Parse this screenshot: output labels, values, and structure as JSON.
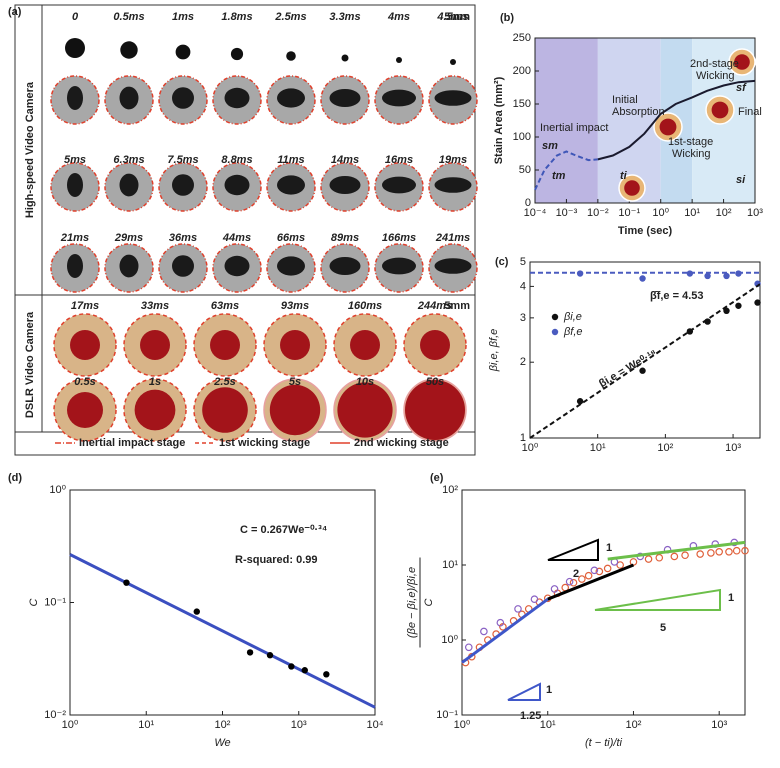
{
  "panel_a": {
    "label": "(a)",
    "scale": "5mm",
    "high_speed": {
      "title": "High-speed Video Camera",
      "times": [
        [
          "0",
          "0.5ms",
          "1ms",
          "1.8ms",
          "2.5ms",
          "3.3ms",
          "4ms",
          "4.5ms"
        ],
        [
          "5ms",
          "6.3ms",
          "7.5ms",
          "8.8ms",
          "11ms",
          "14ms",
          "16ms",
          "19ms"
        ],
        [
          "21ms",
          "29ms",
          "36ms",
          "44ms",
          "66ms",
          "89ms",
          "166ms",
          "241ms"
        ]
      ]
    },
    "dslr": {
      "title": "DSLR Video Camera",
      "times": [
        [
          "17ms",
          "33ms",
          "63ms",
          "93ms",
          "160ms",
          "244ms"
        ],
        [
          "0.5s",
          "1s",
          "2.5s",
          "5s",
          "10s",
          "50s"
        ]
      ]
    },
    "legend": [
      "Inertial impact stage",
      "1st wicking stage",
      "2nd wicking stage"
    ]
  },
  "chart_data": [
    {
      "type": "line",
      "panel_label": "(b)",
      "xlabel": "Time (sec)",
      "ylabel": "Stain Area (mm²)",
      "xlog": true,
      "xlim": [
        0.0001,
        1000
      ],
      "ylim": [
        0,
        250
      ],
      "xticks": [
        {
          "value": 0.0001,
          "label": "10⁻⁴"
        },
        {
          "value": 0.001,
          "label": "10⁻³"
        },
        {
          "value": 0.01,
          "label": "10⁻²"
        },
        {
          "value": 0.1,
          "label": "10⁻¹"
        },
        {
          "value": 1,
          "label": "10⁰"
        },
        {
          "value": 10,
          "label": "10¹"
        },
        {
          "value": 100,
          "label": "10²"
        },
        {
          "value": 1000,
          "label": "10³"
        }
      ],
      "yticks": [
        0,
        50,
        100,
        150,
        200,
        250
      ],
      "bands": [
        {
          "from": 0.0001,
          "to": 0.01,
          "color": "#bcb5e2"
        },
        {
          "from": 0.01,
          "to": 1,
          "color": "#cfd5f0"
        },
        {
          "from": 1,
          "to": 10,
          "color": "#c3dbf0"
        },
        {
          "from": 10,
          "to": 1000,
          "color": "#d8eaf6"
        }
      ],
      "series": [
        {
          "mode": "dashed",
          "color": "#3f57b8",
          "x": [
            0.0001,
            0.0002,
            0.0005,
            0.001,
            0.002,
            0.005,
            0.01
          ],
          "values": [
            20,
            50,
            72,
            78,
            72,
            65,
            66
          ]
        },
        {
          "mode": "line",
          "color": "#1a1a2e",
          "x": [
            0.01,
            0.03,
            0.1,
            0.3,
            1,
            3,
            10,
            30,
            100,
            300,
            1000
          ],
          "values": [
            66,
            72,
            85,
            105,
            135,
            150,
            160,
            170,
            178,
            183,
            185
          ]
        }
      ],
      "annotations": [
        "Inertial impact",
        "Initial",
        "Absorption",
        "1st-stage",
        "Wicking",
        "2nd-stage",
        "Wicking",
        "Final",
        "sm",
        "tm",
        "ti",
        "sf",
        "si"
      ]
    },
    {
      "type": "scatter",
      "panel_label": "(c)",
      "ylabel": "βi,e, βf,e",
      "xlog": true,
      "ylog": true,
      "xlim": [
        1,
        2500
      ],
      "ylim": [
        1,
        5
      ],
      "xticks": [
        {
          "value": 1,
          "label": "10⁰"
        },
        {
          "value": 10,
          "label": "10¹"
        },
        {
          "value": 100,
          "label": "10²"
        },
        {
          "value": 1000,
          "label": "10³"
        }
      ],
      "yticks": [
        1,
        2,
        3,
        4,
        5
      ],
      "legend": "upper left",
      "series": [
        {
          "name": "βi,e",
          "mode": "markers",
          "color": "#111111",
          "x": [
            5.5,
            46,
            230,
            420,
            800,
            1200,
            2300
          ],
          "values": [
            1.4,
            1.85,
            2.65,
            2.9,
            3.2,
            3.35,
            3.45
          ]
        },
        {
          "name": "βf,e",
          "mode": "markers",
          "color": "#4a5bbf",
          "x": [
            5.5,
            46,
            230,
            420,
            800,
            1200,
            2300
          ],
          "values": [
            4.5,
            4.3,
            4.5,
            4.4,
            4.4,
            4.5,
            4.1
          ]
        },
        {
          "mode": "dashed",
          "color": "#111111",
          "x": [
            1,
            2500
          ],
          "values": [
            1,
            4.08
          ]
        },
        {
          "mode": "dashed",
          "color": "#4a5bbf",
          "x": [
            1,
            2500
          ],
          "values": [
            4.53,
            4.53
          ]
        }
      ],
      "annotations": [
        "β̄f,e = 4.53",
        "βi,e = We⁰·¹⁸"
      ]
    },
    {
      "type": "scatter",
      "panel_label": "(d)",
      "xlabel": "We",
      "ylabel": "C",
      "xlog": true,
      "ylog": true,
      "xlim": [
        1,
        10000
      ],
      "ylim": [
        0.01,
        1
      ],
      "xticks": [
        {
          "value": 1,
          "label": "10⁰"
        },
        {
          "value": 10,
          "label": "10¹"
        },
        {
          "value": 100,
          "label": "10²"
        },
        {
          "value": 1000,
          "label": "10³"
        },
        {
          "value": 10000,
          "label": "10⁴"
        }
      ],
      "yticks": [
        {
          "value": 0.01,
          "label": "10⁻²"
        },
        {
          "value": 0.1,
          "label": "10⁻¹"
        },
        {
          "value": 1,
          "label": "10⁰"
        }
      ],
      "series": [
        {
          "mode": "line",
          "color": "#3b4fc0",
          "x": [
            1,
            10000
          ],
          "values": [
            0.267,
            0.0117
          ]
        },
        {
          "mode": "markers",
          "color": "#000000",
          "x": [
            5.5,
            46,
            230,
            420,
            800,
            1200,
            2300
          ],
          "values": [
            0.15,
            0.083,
            0.036,
            0.034,
            0.027,
            0.025,
            0.023
          ]
        }
      ],
      "annotations": [
        "C = 0.267We⁻⁰·³⁴",
        "R-squared: 0.99"
      ]
    },
    {
      "type": "scatter",
      "panel_label": "(e)",
      "xlabel": "(t − ti)/ti",
      "ylabel": [
        "(βe − βi,e)/βi,e",
        "C"
      ],
      "xlog": true,
      "ylog": true,
      "xlim": [
        1,
        2000
      ],
      "ylim": [
        0.1,
        100
      ],
      "xticks": [
        {
          "value": 1,
          "label": "10⁰"
        },
        {
          "value": 10,
          "label": "10¹"
        },
        {
          "value": 100,
          "label": "10²"
        },
        {
          "value": 1000,
          "label": "10³"
        }
      ],
      "yticks": [
        {
          "value": 0.1,
          "label": "10⁻¹"
        },
        {
          "value": 1,
          "label": "10⁰"
        },
        {
          "value": 10,
          "label": "10¹"
        },
        {
          "value": 100,
          "label": "10²"
        }
      ],
      "series": [
        {
          "mode": "markers",
          "color": "#e0603a",
          "x": [
            1.1,
            1.3,
            1.6,
            2,
            2.5,
            3,
            4,
            5,
            6,
            8,
            10,
            13,
            16,
            20,
            25,
            30,
            40,
            50,
            70,
            100,
            150,
            200,
            300,
            400,
            600,
            800,
            1000,
            1300,
            1600,
            2000
          ],
          "values": [
            0.5,
            0.6,
            0.8,
            1,
            1.2,
            1.5,
            1.8,
            2.2,
            2.6,
            3.2,
            3.6,
            4.2,
            5,
            5.8,
            6.5,
            7.2,
            8.2,
            9,
            10,
            11,
            12,
            12.5,
            13,
            13.5,
            14,
            14.5,
            15,
            15,
            15.5,
            15.5
          ]
        },
        {
          "mode": "markers",
          "color": "#8a62c4",
          "x": [
            1.2,
            1.8,
            2.8,
            4.5,
            7,
            12,
            18,
            35,
            60,
            120,
            250,
            500,
            900,
            1500
          ],
          "values": [
            0.8,
            1.3,
            1.7,
            2.6,
            3.5,
            4.8,
            6,
            8.5,
            11,
            13,
            16,
            18,
            19,
            20
          ]
        },
        {
          "mode": "line",
          "color": "#3f57c9",
          "x": [
            1,
            10
          ],
          "values": [
            0.5,
            3.5
          ]
        },
        {
          "mode": "line",
          "color": "#000000",
          "x": [
            10,
            100
          ],
          "values": [
            3.5,
            10
          ]
        },
        {
          "mode": "line",
          "color": "#6cbf4a",
          "x": [
            50,
            2000
          ],
          "values": [
            12,
            20
          ]
        }
      ],
      "annotations": [
        "2",
        "1",
        "5",
        "1",
        "1.25",
        "1"
      ]
    }
  ]
}
